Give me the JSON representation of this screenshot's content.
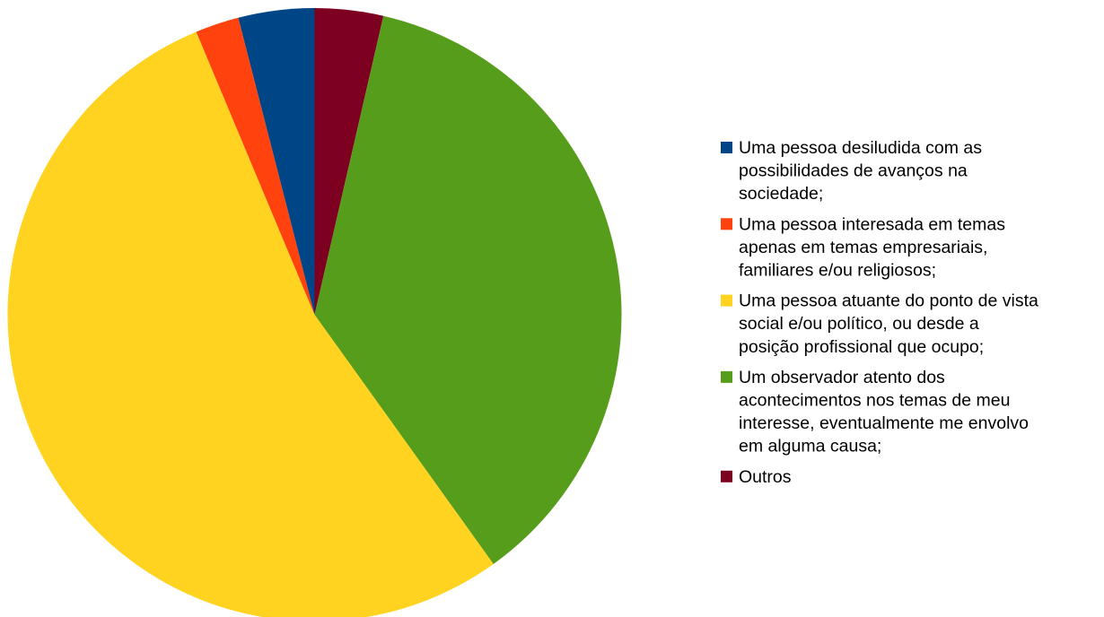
{
  "chart_data": {
    "type": "pie",
    "title": "",
    "slices": [
      {
        "label": "Outros",
        "label_lines": [
          "Outros"
        ],
        "value": 3.6,
        "color": "#7e0021"
      },
      {
        "label": "Um observador atento dos acontecimentos nos temas de meu interesse, eventualmente me envolvo em alguma causa;",
        "label_lines": [
          "Um observador atento dos",
          "acontecimentos nos temas de meu",
          "interesse, eventualmente me envolvo",
          "em alguma causa;"
        ],
        "value": 36.5,
        "color": "#579d1c"
      },
      {
        "label": "Uma pessoa atuante do ponto de vista social e/ou político, ou desde a posição profissional que ocupo;",
        "label_lines": [
          "Uma pessoa atuante do ponto de vista",
          "social e/ou político, ou desde a",
          "posição profissional que ocupo;"
        ],
        "value": 53.6,
        "color": "#ffd320"
      },
      {
        "label": "Uma pessoa interesada em temas apenas em temas empresariais, familiares e/ou religiosos;",
        "label_lines": [
          "Uma pessoa interesada em temas",
          "apenas em temas empresariais,",
          "familiares e/ou religiosos;"
        ],
        "value": 2.3,
        "color": "#ff420e"
      },
      {
        "label": "Uma pessoa desiludida com as possibilidades de avanços na sociedade;",
        "label_lines": [
          "Uma pessoa desiludida com as",
          "possibilidades de avanços na",
          "sociedade;"
        ],
        "value": 4.0,
        "color": "#004586"
      }
    ],
    "legend_order": [
      4,
      3,
      2,
      1,
      0
    ],
    "legend_position": "right"
  }
}
